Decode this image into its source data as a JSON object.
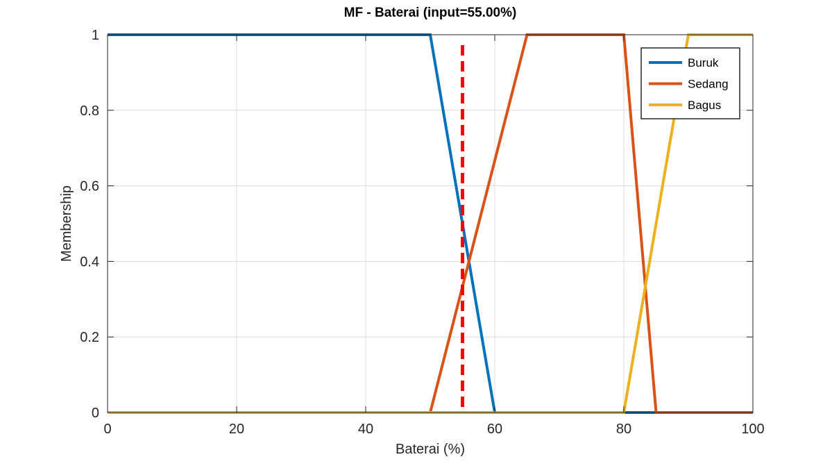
{
  "chart_data": {
    "type": "line",
    "title": "MF - Baterai (input=55.00%)",
    "xlabel": "Baterai (%)",
    "ylabel": "Membership",
    "xlim": [
      0,
      100
    ],
    "ylim": [
      0,
      1
    ],
    "xticks": [
      0,
      20,
      40,
      60,
      80,
      100
    ],
    "yticks": [
      0,
      0.2,
      0.4,
      0.6,
      0.8,
      1
    ],
    "xtick_labels": [
      "0",
      "20",
      "40",
      "60",
      "80",
      "100"
    ],
    "ytick_labels": [
      "0",
      "0.2",
      "0.4",
      "0.6",
      "0.8",
      "1"
    ],
    "grid": true,
    "legend_position": "top-right",
    "series": [
      {
        "name": "Buruk",
        "color": "#0072bd",
        "x": [
          0,
          50,
          60,
          100
        ],
        "y": [
          1,
          1,
          0,
          0
        ]
      },
      {
        "name": "Sedang",
        "color": "#d95319",
        "x": [
          0,
          50,
          65,
          80,
          85,
          100
        ],
        "y": [
          0,
          0,
          1,
          1,
          0,
          0
        ]
      },
      {
        "name": "Bagus",
        "color": "#edb120",
        "x": [
          0,
          80,
          90,
          100
        ],
        "y": [
          0,
          0,
          1,
          1
        ]
      }
    ],
    "input_marker": {
      "x": 55,
      "color": "#ff0000",
      "style": "dashed"
    }
  }
}
